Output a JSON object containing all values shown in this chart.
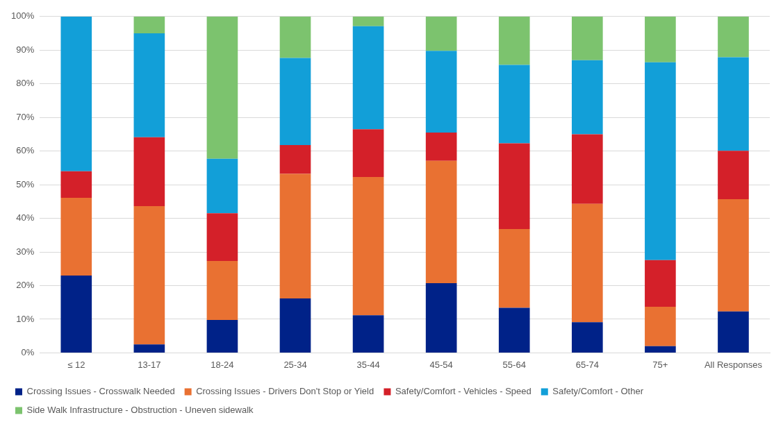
{
  "chart_data": {
    "type": "bar",
    "stacked": true,
    "categories": [
      "≤ 12",
      "13-17",
      "18-24",
      "25-34",
      "35-44",
      "45-54",
      "55-64",
      "65-74",
      "75+",
      "All Responses"
    ],
    "series": [
      {
        "name": "Crossing Issues - Crosswalk Needed",
        "color": "#002288",
        "values": [
          23,
          2.5,
          9.8,
          16.2,
          11.2,
          20.7,
          13.4,
          9.1,
          2,
          12.3
        ]
      },
      {
        "name": "Crossing Issues - Drivers Don't Stop or Yield",
        "color": "#e97132",
        "values": [
          23.1,
          41.1,
          17.5,
          37,
          41.1,
          36.4,
          23.4,
          35.2,
          11.7,
          33.4
        ]
      },
      {
        "name": "Safety/Comfort - Vehicles - Speed",
        "color": "#d42029",
        "values": [
          7.9,
          20.5,
          14.2,
          8.6,
          14.2,
          8.4,
          25.5,
          20.7,
          13.9,
          14.4
        ]
      },
      {
        "name": "Safety/Comfort - Other",
        "color": "#129fd8",
        "values": [
          46,
          30.9,
          16.2,
          25.9,
          30.6,
          24.3,
          23.3,
          22,
          58.8,
          27.8
        ]
      },
      {
        "name": "Side Walk Infrastructure - Obstruction - Uneven sidewalk",
        "color": "#7cc36e",
        "values": [
          0,
          5,
          42.3,
          12.3,
          2.9,
          10.2,
          14.4,
          13,
          13.6,
          12.1
        ]
      }
    ],
    "ylim": [
      0,
      100
    ],
    "yticks": [
      {
        "value": 0,
        "label": "0%"
      },
      {
        "value": 10,
        "label": "10%"
      },
      {
        "value": 20,
        "label": "20%"
      },
      {
        "value": 30,
        "label": "30%"
      },
      {
        "value": 40,
        "label": "40%"
      },
      {
        "value": 50,
        "label": "50%"
      },
      {
        "value": 60,
        "label": "60%"
      },
      {
        "value": 70,
        "label": "70%"
      },
      {
        "value": 80,
        "label": "80%"
      },
      {
        "value": 90,
        "label": "90%"
      },
      {
        "value": 100,
        "label": "100%"
      }
    ],
    "grid": "y",
    "legend": "bottom"
  }
}
